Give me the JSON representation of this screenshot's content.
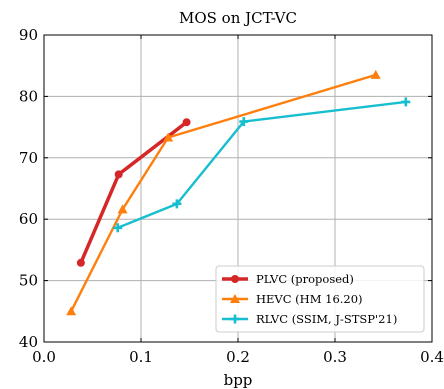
{
  "chart_data": {
    "type": "line",
    "title": "MOS on JCT-VC",
    "xlabel": "bpp",
    "ylabel": "",
    "xlim": [
      0.0,
      0.4
    ],
    "ylim": [
      40,
      90
    ],
    "xticks": [
      "0.0",
      "0.1",
      "0.2",
      "0.3",
      "0.4"
    ],
    "yticks": [
      "40",
      "50",
      "60",
      "70",
      "80",
      "90"
    ],
    "grid": true,
    "legend_position": "lower-right",
    "series": [
      {
        "name": "PLVC (proposed)",
        "color": "#d62728",
        "marker": "circle",
        "x": [
          0.038,
          0.077,
          0.147
        ],
        "y": [
          52.9,
          67.3,
          75.8
        ]
      },
      {
        "name": "HEVC (HM 16.20)",
        "color": "#ff7f0e",
        "marker": "triangle",
        "x": [
          0.028,
          0.081,
          0.128,
          0.342
        ],
        "y": [
          45.0,
          61.6,
          73.3,
          83.5
        ]
      },
      {
        "name": "RLVC (SSIM, J-STSP'21)",
        "color": "#17becf",
        "marker": "plus",
        "x": [
          0.076,
          0.137,
          0.206,
          0.373
        ],
        "y": [
          58.6,
          62.5,
          75.9,
          79.1
        ]
      }
    ]
  }
}
